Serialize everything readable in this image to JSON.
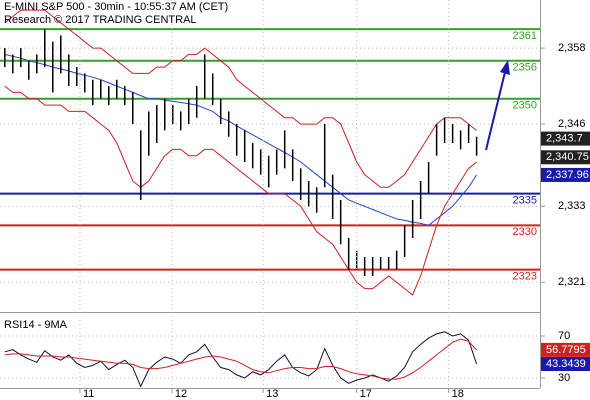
{
  "chart_data": [
    {
      "type": "ohlc",
      "title": "E-MINI S&P 500 - 30min - 10:55:37 AM (CET)",
      "subtitle": "Research © 2017 TRADING CENTRAL",
      "xlim": [
        -0.6,
        66.3
      ],
      "ylim": [
        2316.4,
        2365.6
      ],
      "grid": true,
      "bar_color": "#000000",
      "yticks": [
        {
          "value": 2321,
          "label": "2,321"
        },
        {
          "value": 2333,
          "label": "2,333"
        },
        {
          "value": 2346,
          "label": "2,346"
        },
        {
          "value": 2358,
          "label": "2,358"
        }
      ],
      "high": [
        2358,
        2357,
        2358,
        2356,
        2357,
        2361,
        2359,
        2360,
        2357,
        2355,
        2354,
        2353,
        2353,
        2352,
        2353,
        2352,
        2351,
        2345,
        2348,
        2349,
        2350,
        2349,
        2348,
        2350,
        2352,
        2357,
        2354,
        2350,
        2348,
        2346,
        2345,
        2343,
        2342,
        2341,
        2342,
        2345,
        2342,
        2339,
        2337,
        2336,
        2346,
        2338,
        2334,
        2328,
        2326,
        2325,
        2325,
        2325,
        2325,
        2326,
        2330,
        2334,
        2337,
        2340,
        2346,
        2347,
        2346,
        2345,
        2346,
        2344
      ],
      "low": [
        2355,
        2354,
        2355,
        2353,
        2354,
        2355,
        2351,
        2354,
        2352,
        2352,
        2351,
        2349,
        2350,
        2349,
        2350,
        2349,
        2346,
        2334,
        2341,
        2343,
        2345,
        2346,
        2345,
        2346,
        2347,
        2350,
        2349,
        2346,
        2344,
        2341,
        2340,
        2339,
        2338,
        2336,
        2338,
        2339,
        2337,
        2334,
        2333,
        2332,
        2336,
        2331,
        2327,
        2323,
        2323,
        2322,
        2322,
        2323,
        2323,
        2323,
        2325,
        2328,
        2331,
        2335,
        2341,
        2343,
        2343,
        2342,
        2343,
        2341
      ],
      "overlays": [
        {
          "color": "#2244cc",
          "values": [
            2357,
            2356.7,
            2356.4,
            2356,
            2355.7,
            2355.4,
            2355,
            2354.7,
            2354.4,
            2354,
            2353.7,
            2353.4,
            2353,
            2352.5,
            2352,
            2351.5,
            2351,
            2350.5,
            2350,
            2350,
            2349.8,
            2349.6,
            2349.4,
            2349.2,
            2349,
            2348.5,
            2348,
            2347,
            2346.5,
            2345.7,
            2345,
            2344.3,
            2343.6,
            2342.9,
            2342.2,
            2341.5,
            2340.8,
            2340,
            2339,
            2338,
            2337,
            2336,
            2335,
            2334,
            2333.5,
            2333,
            2332.5,
            2332,
            2331.5,
            2331,
            2330.8,
            2330.5,
            2330.3,
            2330,
            2331,
            2332,
            2333,
            2334.5,
            2336,
            2337.96
          ]
        },
        {
          "color": "#cc2222",
          "values": [
            2362,
            2363,
            2364,
            2364,
            2364,
            2364,
            2363,
            2362,
            2361,
            2360,
            2359,
            2358,
            2358,
            2357,
            2356,
            2355,
            2354,
            2354,
            2354,
            2355,
            2355,
            2356,
            2356,
            2357,
            2357,
            2358,
            2357,
            2356,
            2355,
            2353,
            2352,
            2351,
            2350,
            2349,
            2348,
            2347,
            2347,
            2346,
            2346,
            2346,
            2347,
            2347,
            2346,
            2343,
            2340,
            2338,
            2337,
            2336,
            2336,
            2337,
            2338,
            2340,
            2342,
            2344,
            2346,
            2347,
            2347,
            2347,
            2346,
            2345
          ]
        },
        {
          "color": "#cc2222",
          "values": [
            2352,
            2351,
            2351,
            2350,
            2350,
            2349,
            2349,
            2349,
            2348,
            2348,
            2348,
            2347,
            2346,
            2345,
            2343,
            2340,
            2337,
            2336,
            2337,
            2339,
            2341,
            2342,
            2342,
            2341,
            2341,
            2342,
            2342,
            2341,
            2340,
            2339,
            2338,
            2337,
            2336,
            2335,
            2335,
            2335,
            2334,
            2333,
            2331,
            2329,
            2328,
            2327,
            2325,
            2323,
            2321,
            2320,
            2320,
            2321,
            2322,
            2321,
            2320,
            2319,
            2322,
            2326,
            2330,
            2333,
            2335,
            2337,
            2339,
            2340
          ]
        }
      ],
      "levels": [
        {
          "value": 2361,
          "color": "#33a02c"
        },
        {
          "value": 2356,
          "color": "#33a02c"
        },
        {
          "value": 2350,
          "color": "#33a02c"
        },
        {
          "value": 2335,
          "color": "#1a1aa8"
        },
        {
          "value": 2330,
          "color": "#cc2222"
        },
        {
          "value": 2323,
          "color": "#cc2222"
        }
      ],
      "markers": [
        {
          "value": 2343.7,
          "label": "2,343.7",
          "color": "#222222"
        },
        {
          "value": 2340.75,
          "label": "2,340.75",
          "color": "#222222"
        },
        {
          "value": 2337.96,
          "label": "2,337.96",
          "color": "#1a1aa8"
        }
      ]
    },
    {
      "type": "line",
      "title": "RSI14 - 9MA",
      "xlim": [
        -0.6,
        66.3
      ],
      "ylim": [
        18.6,
        90
      ],
      "yticks": [
        30,
        70
      ],
      "grid": true,
      "xticks": [
        {
          "value": 9.4,
          "label": "11"
        },
        {
          "value": 20.9,
          "label": "12"
        },
        {
          "value": 32.3,
          "label": "13"
        },
        {
          "value": 44,
          "label": "17"
        },
        {
          "value": 55.5,
          "label": "18"
        }
      ],
      "series": [
        {
          "color": "#111133",
          "values": [
            55,
            57,
            52,
            48,
            45,
            56,
            50,
            47,
            52,
            44,
            40,
            42,
            46,
            38,
            43,
            47,
            40,
            22,
            38,
            45,
            50,
            48,
            44,
            52,
            55,
            62,
            50,
            40,
            38,
            33,
            30,
            36,
            33,
            38,
            46,
            52,
            40,
            35,
            32,
            38,
            58,
            42,
            30,
            25,
            28,
            30,
            33,
            30,
            27,
            32,
            40,
            55,
            62,
            68,
            72,
            74,
            70,
            72,
            66,
            43.3439
          ]
        },
        {
          "color": "#cc2222",
          "values": [
            52,
            53,
            53,
            52,
            51,
            51,
            51,
            50,
            50,
            49,
            48,
            47,
            46,
            45,
            44,
            44,
            43,
            40,
            39,
            39,
            40,
            42,
            44,
            46,
            48,
            50,
            51,
            50,
            48,
            46,
            42,
            38,
            36,
            35,
            37,
            39,
            40,
            40,
            39,
            39,
            41,
            41,
            39,
            36,
            34,
            33,
            32,
            30,
            29,
            29,
            31,
            35,
            40,
            46,
            52,
            58,
            64,
            67,
            65,
            56.7795
          ]
        }
      ],
      "markers": [
        {
          "value": 56.7795,
          "label": "56.7795",
          "color": "#cc2222"
        },
        {
          "value": 43.3439,
          "label": "43.3439",
          "color": "#1a1aa8"
        }
      ]
    }
  ]
}
